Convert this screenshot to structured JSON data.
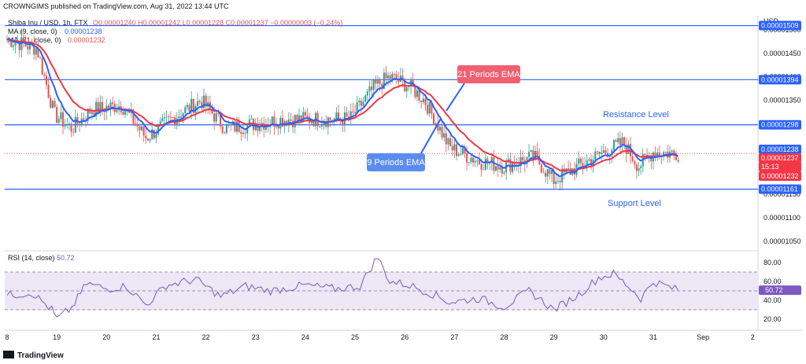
{
  "header": {
    "published_by": "CROWNGIMS published on TradingView.com, Aug 31, 2022 13:44 UTC",
    "symbol_line": "Shiba Inu / USD, 1h, FTX",
    "ohlc": "O0.00001240 H0.00001242 L0.00001228 C0.00001237 −0.00000003 (−0.24%)",
    "ma9_label": "MA (9, close, 0)",
    "ma9_value": "0.00001238",
    "ma21_label": "MA (21, close, 0)",
    "ma21_value": "0.00001232",
    "rsi_label": "RSI (14, close)",
    "rsi_value": "50.72",
    "currency": "USD",
    "footer_brand": "TradingView"
  },
  "annotations": {
    "resistance": "Resistance Level",
    "support": "Support Level",
    "ema21": "21 Periods EMA",
    "ema9": "9 Periods EMA"
  },
  "colors": {
    "up": "#26a69a",
    "down": "#ef5350",
    "ema21": "#f23645",
    "ema9": "#2962ff",
    "level": "#2962ff",
    "rsi": "#7e57c2",
    "rsi_band": "#ede7f6"
  },
  "chart_data": [
    {
      "type": "candlestick",
      "symbol": "Shiba Inu / USD",
      "interval": "1h",
      "y_range": [
        1.03e-05,
        1.53e-05
      ],
      "y_ticks": [
        "0.00001050",
        "0.00001100",
        "0.00001150",
        "0.00001200",
        "0.00001250",
        "0.00001300",
        "0.00001350",
        "0.00001400",
        "0.00001450",
        "0.00001500"
      ],
      "x_ticks": [
        "8",
        "19",
        "20",
        "21",
        "22",
        "23",
        "24",
        "25",
        "26",
        "27",
        "28",
        "29",
        "30",
        "31",
        "Sep",
        "2"
      ],
      "levels": [
        {
          "label": "0.00001509",
          "value": 1.509e-05
        },
        {
          "label": "0.00001394",
          "value": 1.394e-05
        },
        {
          "label": "0.00001298",
          "value": 1.298e-05
        },
        {
          "label": "0.00001161",
          "value": 1.161e-05
        }
      ],
      "price_labels": [
        {
          "label": "0.00001238",
          "value": 1.238e-05,
          "color": "#2962ff"
        },
        {
          "label": "0.00001237",
          "value": 1.237e-05,
          "color": "#f23645"
        },
        {
          "label": "15:13",
          "value": 1.237e-05,
          "color": "#f23645"
        },
        {
          "label": "0.00001232",
          "value": 1.232e-05,
          "color": "#f23645"
        }
      ],
      "day_anchors": [
        {
          "day": 18.0,
          "price": 1.48e-05
        },
        {
          "day": 18.6,
          "price": 1.46e-05
        },
        {
          "day": 18.95,
          "price": 1.32e-05
        },
        {
          "day": 19.3,
          "price": 1.29e-05
        },
        {
          "day": 19.7,
          "price": 1.33e-05
        },
        {
          "day": 20.3,
          "price": 1.34e-05
        },
        {
          "day": 20.8,
          "price": 1.27e-05
        },
        {
          "day": 21.3,
          "price": 1.31e-05
        },
        {
          "day": 21.9,
          "price": 1.35e-05
        },
        {
          "day": 22.4,
          "price": 1.29e-05
        },
        {
          "day": 23.0,
          "price": 1.3e-05
        },
        {
          "day": 23.6,
          "price": 1.31e-05
        },
        {
          "day": 24.3,
          "price": 1.31e-05
        },
        {
          "day": 24.9,
          "price": 1.31e-05
        },
        {
          "day": 25.4,
          "price": 1.38e-05
        },
        {
          "day": 25.7,
          "price": 1.4e-05
        },
        {
          "day": 26.1,
          "price": 1.38e-05
        },
        {
          "day": 26.4,
          "price": 1.35e-05
        },
        {
          "day": 26.9,
          "price": 1.25e-05
        },
        {
          "day": 27.5,
          "price": 1.22e-05
        },
        {
          "day": 28.0,
          "price": 1.21e-05
        },
        {
          "day": 28.6,
          "price": 1.23e-05
        },
        {
          "day": 29.0,
          "price": 1.18e-05
        },
        {
          "day": 29.5,
          "price": 1.21e-05
        },
        {
          "day": 30.0,
          "price": 1.24e-05
        },
        {
          "day": 30.4,
          "price": 1.26e-05
        },
        {
          "day": 30.7,
          "price": 1.21e-05
        },
        {
          "day": 31.0,
          "price": 1.24e-05
        },
        {
          "day": 31.5,
          "price": 1.237e-05
        }
      ]
    },
    {
      "type": "line",
      "name": "RSI (14, close)",
      "y_range": [
        10,
        90
      ],
      "y_ticks": [
        "80.00",
        "60.00",
        "40.00",
        "20.00"
      ],
      "bands": [
        70,
        50,
        30
      ],
      "last_value": 50.72,
      "points": [
        {
          "day": 18.0,
          "value": 45
        },
        {
          "day": 18.5,
          "value": 48
        },
        {
          "day": 18.9,
          "value": 30
        },
        {
          "day": 19.0,
          "value": 20
        },
        {
          "day": 19.3,
          "value": 32
        },
        {
          "day": 19.6,
          "value": 58
        },
        {
          "day": 20.0,
          "value": 52
        },
        {
          "day": 20.4,
          "value": 55
        },
        {
          "day": 20.8,
          "value": 35
        },
        {
          "day": 21.2,
          "value": 56
        },
        {
          "day": 21.8,
          "value": 62
        },
        {
          "day": 22.3,
          "value": 44
        },
        {
          "day": 22.8,
          "value": 55
        },
        {
          "day": 23.3,
          "value": 50
        },
        {
          "day": 24.0,
          "value": 56
        },
        {
          "day": 24.6,
          "value": 52
        },
        {
          "day": 25.1,
          "value": 55
        },
        {
          "day": 25.45,
          "value": 86
        },
        {
          "day": 25.7,
          "value": 60
        },
        {
          "day": 26.1,
          "value": 56
        },
        {
          "day": 26.5,
          "value": 48
        },
        {
          "day": 26.9,
          "value": 38
        },
        {
          "day": 27.5,
          "value": 42
        },
        {
          "day": 28.0,
          "value": 33
        },
        {
          "day": 28.5,
          "value": 50
        },
        {
          "day": 29.0,
          "value": 30
        },
        {
          "day": 29.5,
          "value": 46
        },
        {
          "day": 29.9,
          "value": 64
        },
        {
          "day": 30.2,
          "value": 68
        },
        {
          "day": 30.5,
          "value": 55
        },
        {
          "day": 30.75,
          "value": 42
        },
        {
          "day": 31.0,
          "value": 60
        },
        {
          "day": 31.5,
          "value": 50.72
        }
      ]
    }
  ]
}
